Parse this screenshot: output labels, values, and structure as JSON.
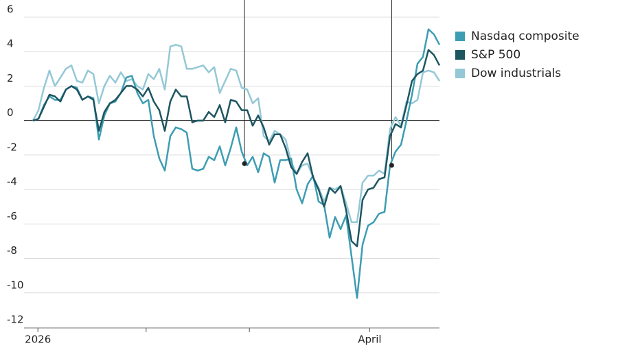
{
  "chart_data": {
    "type": "line",
    "x": [
      0,
      1,
      2,
      3,
      4,
      5,
      6,
      7,
      8,
      9,
      10,
      11,
      12,
      13,
      14,
      15,
      16,
      17,
      18,
      19,
      20,
      21,
      22,
      23,
      24,
      25,
      26,
      27,
      28,
      29,
      30,
      31,
      32,
      33,
      34,
      35,
      36,
      37,
      38,
      39,
      40,
      41,
      42,
      43,
      44,
      45,
      46,
      47,
      48,
      49,
      50,
      51,
      52,
      53,
      54,
      55,
      56,
      57,
      58,
      59,
      60,
      61,
      62,
      63,
      64,
      65,
      66,
      67,
      68,
      69,
      70,
      71,
      72,
      73,
      74
    ],
    "series": [
      {
        "name": "Nasdaq composite",
        "color": "#3d9db3",
        "values": [
          0.0,
          0.1,
          0.9,
          1.4,
          1.2,
          1.2,
          1.8,
          2.0,
          1.9,
          1.2,
          1.4,
          1.3,
          -1.1,
          0.3,
          1.0,
          1.1,
          1.6,
          2.5,
          2.6,
          1.6,
          1.0,
          1.2,
          -0.9,
          -2.2,
          -2.9,
          -0.9,
          -0.4,
          -0.5,
          -0.7,
          -2.8,
          -2.9,
          -2.8,
          -2.1,
          -2.3,
          -1.5,
          -2.6,
          -1.6,
          -0.4,
          -1.8,
          -2.6,
          -2.1,
          -3.0,
          -1.9,
          -2.1,
          -3.6,
          -2.3,
          -2.3,
          -2.2,
          -4.0,
          -4.8,
          -3.7,
          -3.2,
          -4.7,
          -4.9,
          -6.8,
          -5.6,
          -6.3,
          -5.5,
          -7.9,
          -10.3,
          -7.2,
          -6.1,
          -5.9,
          -5.4,
          -5.3,
          -2.6,
          -1.8,
          -1.4,
          0.0,
          1.5,
          3.3,
          3.7,
          5.3,
          5.0,
          4.4
        ]
      },
      {
        "name": "S&P 500",
        "color": "#1d5560",
        "values": [
          0.0,
          0.1,
          0.8,
          1.5,
          1.4,
          1.1,
          1.8,
          2.0,
          1.8,
          1.2,
          1.4,
          1.2,
          -0.6,
          0.5,
          1.0,
          1.2,
          1.6,
          2.0,
          2.0,
          1.8,
          1.4,
          1.9,
          1.1,
          0.6,
          -0.6,
          1.1,
          1.8,
          1.4,
          1.4,
          -0.1,
          0.0,
          0.0,
          0.5,
          0.2,
          0.9,
          -0.1,
          1.2,
          1.1,
          0.6,
          0.6,
          -0.3,
          0.3,
          -0.4,
          -1.4,
          -0.8,
          -0.8,
          -1.6,
          -2.7,
          -3.1,
          -2.4,
          -1.9,
          -3.3,
          -4.0,
          -5.0,
          -3.9,
          -4.2,
          -3.8,
          -5.2,
          -7.0,
          -7.3,
          -4.6,
          -4.0,
          -3.9,
          -3.4,
          -3.3,
          -0.9,
          -0.2,
          -0.4,
          0.9,
          2.3,
          2.7,
          2.9,
          4.1,
          3.8,
          3.2
        ]
      },
      {
        "name": "Dow industrials",
        "color": "#94c8d6",
        "values": [
          0.0,
          0.6,
          1.9,
          2.9,
          2.0,
          2.5,
          3.0,
          3.2,
          2.3,
          2.2,
          2.9,
          2.7,
          1.0,
          2.0,
          2.6,
          2.2,
          2.8,
          2.3,
          2.4,
          2.0,
          1.8,
          2.7,
          2.4,
          3.0,
          1.8,
          4.3,
          4.4,
          4.3,
          3.0,
          3.0,
          3.1,
          3.2,
          2.8,
          3.1,
          1.6,
          2.3,
          3.0,
          2.9,
          1.9,
          1.8,
          1.0,
          1.3,
          -0.9,
          -1.2,
          -0.6,
          -0.8,
          -1.1,
          -2.4,
          -3.1,
          -2.6,
          -2.5,
          -3.3,
          -3.9,
          -4.7,
          -3.9,
          -4.0,
          -3.8,
          -4.8,
          -5.9,
          -5.9,
          -3.6,
          -3.2,
          -3.2,
          -2.9,
          -3.1,
          -0.5,
          0.2,
          -0.3,
          1.1,
          1.0,
          1.2,
          2.8,
          2.9,
          2.8,
          2.3
        ]
      }
    ],
    "xlim": [
      0,
      74
    ],
    "xticks": [
      {
        "value": 0.9,
        "label": "2026"
      },
      {
        "value": 61.3,
        "label": "April"
      }
    ],
    "xminor": [
      20.6,
      39.4
    ],
    "ylim": [
      -12,
      6
    ],
    "yticks": [
      -12,
      -10,
      -8,
      -6,
      -4,
      -2,
      0,
      2,
      4,
      6
    ],
    "grid": true,
    "legend": "top-right",
    "markers": [
      {
        "x": 38.5,
        "y": -2.5
      },
      {
        "x": 65.3,
        "y": -2.6
      }
    ]
  }
}
